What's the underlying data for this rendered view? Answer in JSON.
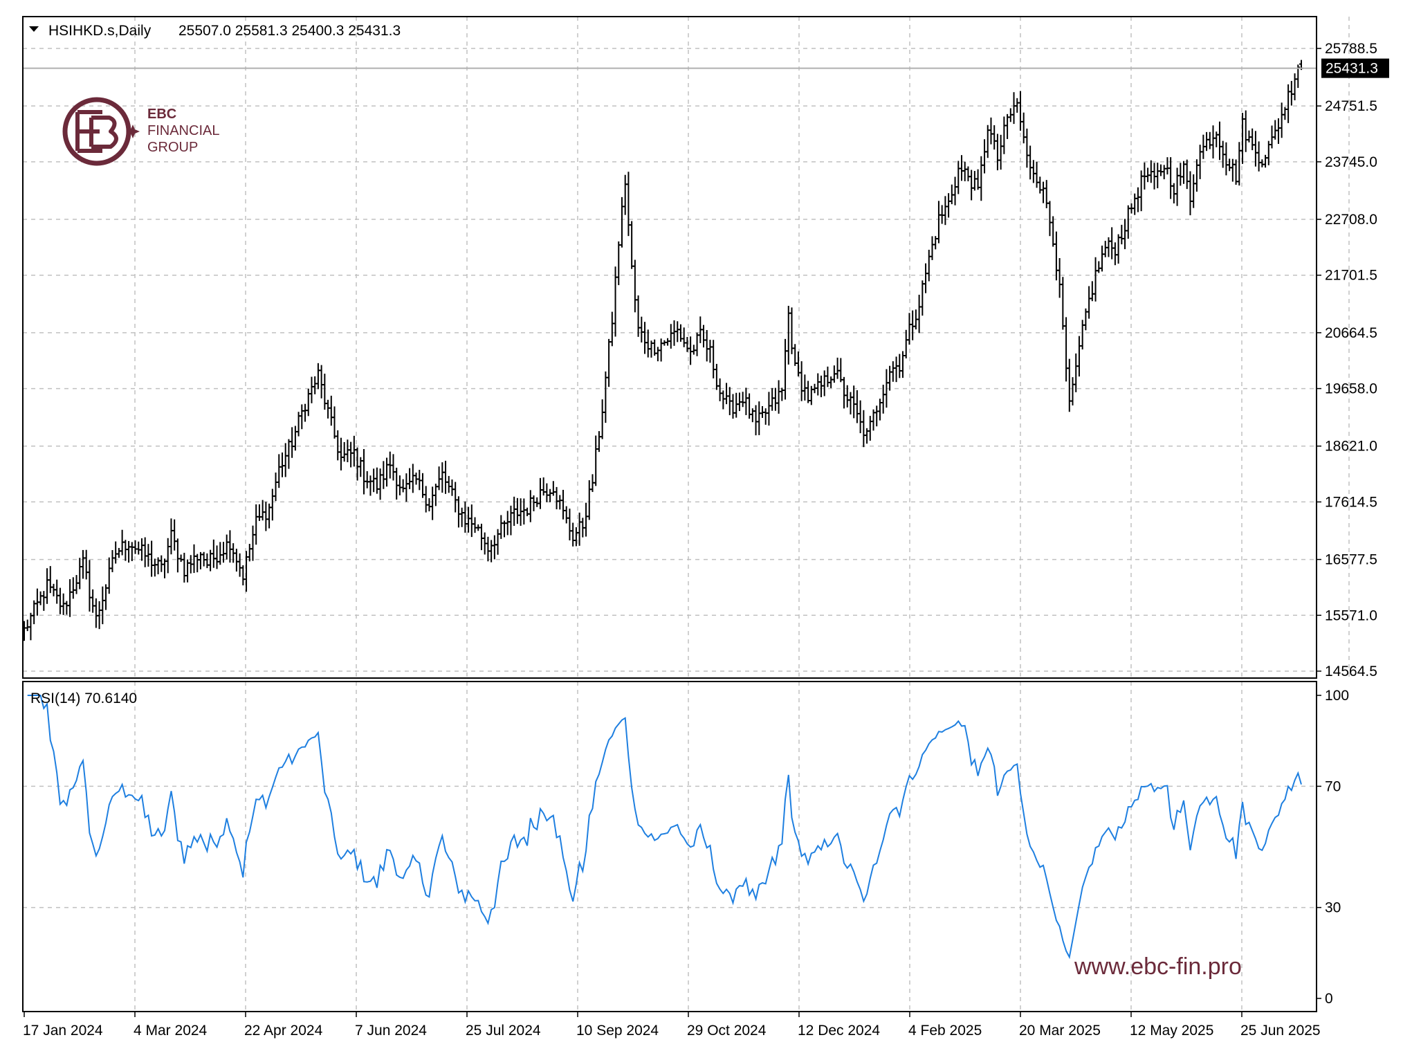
{
  "header": {
    "symbol_label": "HSIHKD.s,Daily",
    "ohlc_label": "25507.0 25581.3 25400.3 25431.3",
    "menu_icon": "triangle-down-icon"
  },
  "logo": {
    "text_1": "EBC",
    "text_2": "FINANCIAL",
    "text_3": "GROUP",
    "color": "#6b2a3a"
  },
  "watermark": "www.ebc-fin.pro",
  "chart_data": [
    {
      "type": "ohlc",
      "symbol": "HSIHKD.s",
      "timeframe": "Daily",
      "last": {
        "open": 25507.0,
        "high": 25581.3,
        "low": 25400.3,
        "close": 25431.3
      },
      "current_price_label": "25431.3",
      "y_ticks": [
        "25788.5",
        "24751.5",
        "23745.0",
        "22708.0",
        "21701.5",
        "20664.5",
        "19658.0",
        "18621.0",
        "17614.5",
        "16577.5",
        "15571.0",
        "14564.5"
      ],
      "ylim": [
        14564.5,
        25788.5
      ],
      "x_ticks": [
        "17 Jan 2024",
        "4 Mar 2024",
        "22 Apr 2024",
        "7 Jun 2024",
        "25 Jul 2024",
        "10 Sep 2024",
        "29 Oct 2024",
        "12 Dec 2024",
        "4 Feb 2025",
        "20 Mar 2025",
        "12 May 2025",
        "25 Jun 2025"
      ],
      "grid": true,
      "bar_color": "#000000",
      "close_path": [
        [
          0,
          15300
        ],
        [
          7,
          16100
        ],
        [
          12,
          15700
        ],
        [
          18,
          16500
        ],
        [
          22,
          15500
        ],
        [
          28,
          16700
        ],
        [
          32,
          16900
        ],
        [
          38,
          16600
        ],
        [
          42,
          16400
        ],
        [
          45,
          17000
        ],
        [
          49,
          16400
        ],
        [
          54,
          16700
        ],
        [
          56,
          16500
        ],
        [
          63,
          16900
        ],
        [
          67,
          16300
        ],
        [
          71,
          17250
        ],
        [
          75,
          17500
        ],
        [
          78,
          18200
        ],
        [
          82,
          18700
        ],
        [
          86,
          19400
        ],
        [
          90,
          19900
        ],
        [
          94,
          19000
        ],
        [
          97,
          18400
        ],
        [
          101,
          18500
        ],
        [
          104,
          18100
        ],
        [
          108,
          17900
        ],
        [
          112,
          18300
        ],
        [
          116,
          17800
        ],
        [
          120,
          18000
        ],
        [
          124,
          17600
        ],
        [
          128,
          18100
        ],
        [
          132,
          17600
        ],
        [
          135,
          17300
        ],
        [
          138,
          17200
        ],
        [
          142,
          16800
        ],
        [
          146,
          17100
        ],
        [
          150,
          17400
        ],
        [
          154,
          17500
        ],
        [
          158,
          17800
        ],
        [
          162,
          17900
        ],
        [
          165,
          17400
        ],
        [
          168,
          17000
        ],
        [
          171,
          17200
        ],
        [
          174,
          18000
        ],
        [
          177,
          19300
        ],
        [
          180,
          20900
        ],
        [
          182,
          22300
        ],
        [
          184,
          23400
        ],
        [
          186,
          21800
        ],
        [
          188,
          20700
        ],
        [
          192,
          20400
        ],
        [
          196,
          20500
        ],
        [
          200,
          20700
        ],
        [
          204,
          20300
        ],
        [
          207,
          20600
        ],
        [
          210,
          20300
        ],
        [
          213,
          19600
        ],
        [
          216,
          19300
        ],
        [
          220,
          19500
        ],
        [
          224,
          19000
        ],
        [
          228,
          19300
        ],
        [
          232,
          19600
        ],
        [
          234,
          21000
        ],
        [
          236,
          20000
        ],
        [
          240,
          19500
        ],
        [
          244,
          19700
        ],
        [
          248,
          20000
        ],
        [
          251,
          19600
        ],
        [
          254,
          19300
        ],
        [
          256,
          19000
        ],
        [
          258,
          18800
        ],
        [
          262,
          19500
        ],
        [
          265,
          20000
        ],
        [
          268,
          20100
        ],
        [
          271,
          20700
        ],
        [
          274,
          21200
        ],
        [
          277,
          22000
        ],
        [
          280,
          22700
        ],
        [
          283,
          23000
        ],
        [
          286,
          23600
        ],
        [
          289,
          23500
        ],
        [
          292,
          23200
        ],
        [
          295,
          24400
        ],
        [
          298,
          23800
        ],
        [
          301,
          24500
        ],
        [
          304,
          24800
        ],
        [
          307,
          23800
        ],
        [
          310,
          23500
        ],
        [
          313,
          23000
        ],
        [
          315,
          22400
        ],
        [
          317,
          21400
        ],
        [
          320,
          19300
        ],
        [
          322,
          20000
        ],
        [
          325,
          21000
        ],
        [
          328,
          21700
        ],
        [
          331,
          22200
        ],
        [
          334,
          22200
        ],
        [
          337,
          22600
        ],
        [
          340,
          23100
        ],
        [
          343,
          23500
        ],
        [
          346,
          23400
        ],
        [
          349,
          23700
        ],
        [
          352,
          23300
        ],
        [
          355,
          23600
        ],
        [
          357,
          23100
        ],
        [
          359,
          23800
        ],
        [
          362,
          24100
        ],
        [
          365,
          24300
        ],
        [
          368,
          23800
        ],
        [
          371,
          23500
        ],
        [
          373,
          24400
        ],
        [
          376,
          24000
        ],
        [
          379,
          23800
        ],
        [
          382,
          24100
        ],
        [
          385,
          24600
        ],
        [
          388,
          25100
        ],
        [
          390,
          25500
        ],
        [
          391,
          25431.3
        ]
      ],
      "last_index": 391
    },
    {
      "type": "line",
      "indicator_label": "RSI(14)",
      "value_label": "70.6140",
      "period": 14,
      "value": 70.614,
      "y_ticks": [
        "100",
        "70",
        "30",
        "0"
      ],
      "ylim": [
        0,
        100
      ],
      "line_color": "#1e7fe0",
      "grid": true
    }
  ]
}
